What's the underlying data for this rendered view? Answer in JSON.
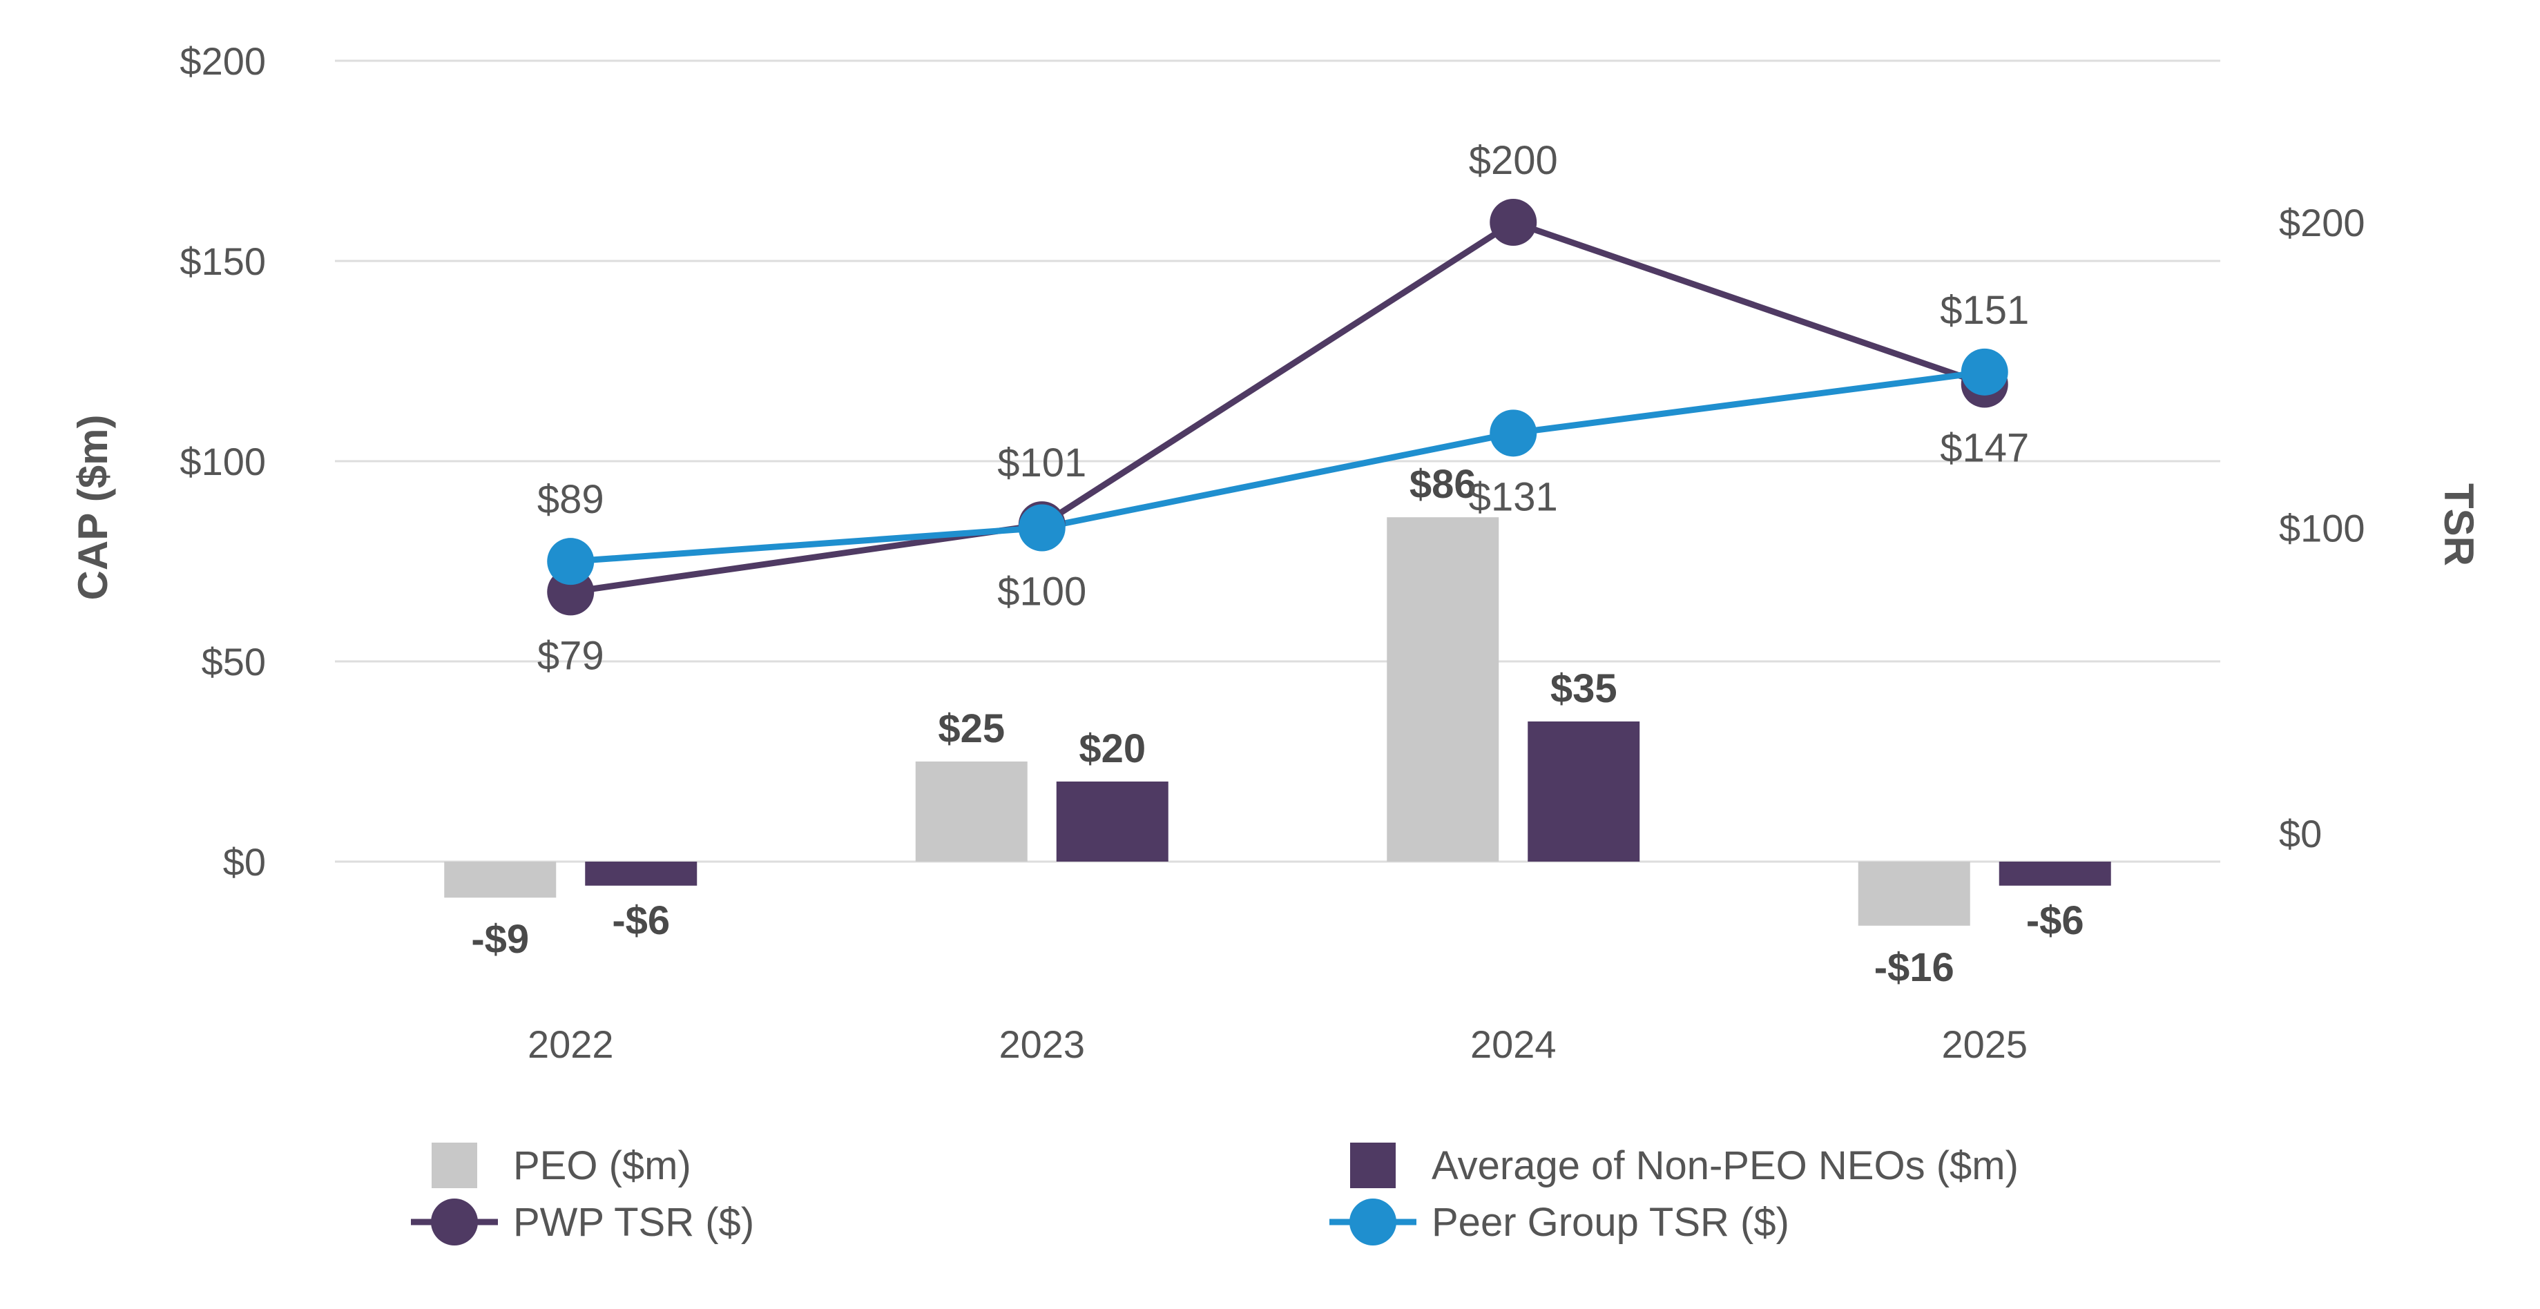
{
  "chart_data": {
    "type": "bar",
    "categories": [
      "2022",
      "2023",
      "2024",
      "2025"
    ],
    "y_left": {
      "label": "CAP ($m)",
      "range": [
        -30,
        200
      ],
      "ticks": [
        0,
        50,
        100,
        150,
        200
      ],
      "tick_labels": [
        "$0",
        "$50",
        "$100",
        "$150",
        "$200"
      ]
    },
    "y_right": {
      "label": "TSR",
      "range": [
        -30,
        254
      ],
      "ticks": [
        0,
        100,
        200
      ],
      "tick_labels": [
        "$0",
        "$100",
        "$200"
      ]
    },
    "grid": true,
    "legend_position": "bottom",
    "series": [
      {
        "name": "PEO ($m)",
        "type": "bar",
        "axis": "left",
        "color": "#c8c8c8",
        "values": [
          -9,
          25,
          86,
          -16
        ],
        "labels": [
          "-$9",
          "$25",
          "$86",
          "-$16"
        ]
      },
      {
        "name": "Average of Non-PEO NEOs ($m)",
        "type": "bar",
        "axis": "left",
        "color": "#4f3a63",
        "values": [
          -6,
          20,
          35,
          -6
        ],
        "labels": [
          "-$6",
          "$20",
          "$35",
          "-$6"
        ]
      },
      {
        "name": "PWP TSR ($)",
        "type": "line",
        "axis": "right",
        "color": "#4f3a63",
        "values": [
          79,
          101,
          200,
          147
        ],
        "labels": [
          "$79",
          "$101",
          "$200",
          "$147"
        ]
      },
      {
        "name": "Peer Group TSR ($)",
        "type": "line",
        "axis": "right",
        "color": "#1f8fcf",
        "values": [
          89,
          100,
          131,
          151
        ],
        "labels": [
          "$89",
          "$100",
          "$131",
          "$151"
        ]
      }
    ]
  }
}
